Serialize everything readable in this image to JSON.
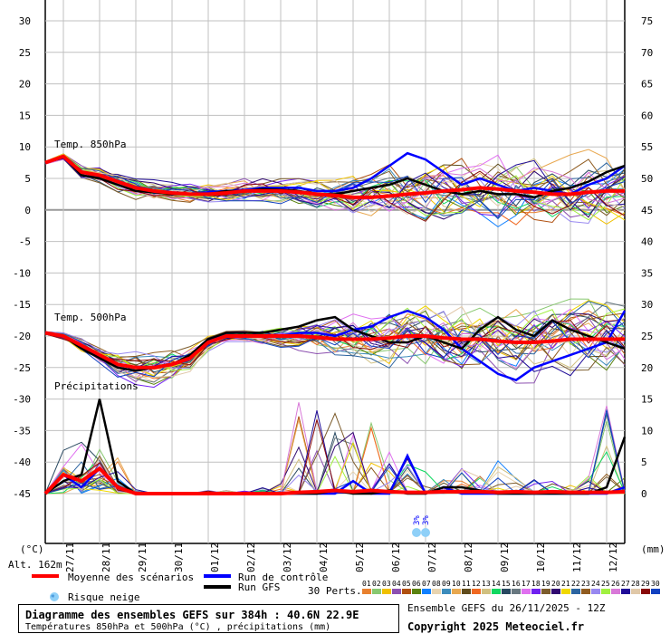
{
  "chart_data": {
    "type": "line",
    "title": "Diagramme des ensembles GEFS sur 384h : 40.6N 22.9E",
    "subtitle": "Températures 850hPa et 500hPa (°C) , précipitations (mm)",
    "run_info": "Ensemble GEFS du 26/11/2025 - 12Z",
    "copyright": "Copyright 2025 Meteociel.fr",
    "altitude": "Alt. 162m",
    "y_left_unit": "(°C)",
    "y_right_unit": "(mm)",
    "y_left_ticks": [
      "30",
      "25",
      "20",
      "15",
      "10",
      "5",
      "0",
      "-5",
      "-10",
      "-15",
      "-20",
      "-25",
      "-30",
      "-35",
      "-40",
      "-45"
    ],
    "y_left_values": [
      30,
      25,
      20,
      15,
      10,
      5,
      0,
      -5,
      -10,
      -15,
      -20,
      -25,
      -30,
      -35,
      -40,
      -45
    ],
    "y_right_ticks": [
      "75",
      "70",
      "65",
      "60",
      "55",
      "50",
      "45",
      "40",
      "35",
      "30",
      "25",
      "20",
      "15",
      "10",
      "5",
      "0"
    ],
    "ylim_left": [
      -45,
      30
    ],
    "ylim_right": [
      0,
      75
    ],
    "x_hours_range": [
      0,
      384
    ],
    "x_step_hours": 12,
    "x_tick_labels": [
      "27/11",
      "28/11",
      "29/11",
      "30/11",
      "01/12",
      "02/12",
      "03/12",
      "04/12",
      "05/12",
      "06/12",
      "07/12",
      "08/12",
      "09/12",
      "10/12",
      "11/12",
      "12/12"
    ],
    "panel_labels": {
      "t850": "Temp. 850hPa",
      "t500": "Temp. 500hPa",
      "precip": "Précipitations"
    },
    "legend": {
      "mean": "Moyenne des scénarios",
      "control": "Run de contrôle",
      "gfs": "Run GFS",
      "snow": "Risque neige",
      "perts": "30 Perts."
    },
    "colors": {
      "mean": "#ff0000",
      "control": "#0000ff",
      "gfs": "#000000"
    },
    "perturbations": [
      {
        "id": "01",
        "color": "#e8802e"
      },
      {
        "id": "02",
        "color": "#88c870"
      },
      {
        "id": "03",
        "color": "#f0c000"
      },
      {
        "id": "04",
        "color": "#8c50b0"
      },
      {
        "id": "05",
        "color": "#b05010"
      },
      {
        "id": "06",
        "color": "#5a8210"
      },
      {
        "id": "07",
        "color": "#1080ff"
      },
      {
        "id": "08",
        "color": "#e8d4b0"
      },
      {
        "id": "09",
        "color": "#3c8cbc"
      },
      {
        "id": "10",
        "color": "#e8a850"
      },
      {
        "id": "11",
        "color": "#604c1c"
      },
      {
        "id": "12",
        "color": "#f06820"
      },
      {
        "id": "13",
        "color": "#d0c080"
      },
      {
        "id": "14",
        "color": "#10d860"
      },
      {
        "id": "15",
        "color": "#284860"
      },
      {
        "id": "16",
        "color": "#687880"
      },
      {
        "id": "17",
        "color": "#e070f0"
      },
      {
        "id": "18",
        "color": "#7020f0"
      },
      {
        "id": "19",
        "color": "#7c5c2c"
      },
      {
        "id": "20",
        "color": "#300870"
      },
      {
        "id": "21",
        "color": "#f0d800"
      },
      {
        "id": "22",
        "color": "#2c64a0"
      },
      {
        "id": "23",
        "color": "#905c20"
      },
      {
        "id": "24",
        "color": "#9888f0"
      },
      {
        "id": "25",
        "color": "#a0f040"
      },
      {
        "id": "26",
        "color": "#d878d8"
      },
      {
        "id": "27",
        "color": "#200c98"
      },
      {
        "id": "28",
        "color": "#e0c8a8"
      },
      {
        "id": "29",
        "color": "#880808"
      },
      {
        "id": "30",
        "color": "#1040c0"
      }
    ],
    "series": {
      "t850_mean": [
        7.5,
        8.5,
        6,
        5.5,
        4.5,
        3.5,
        3,
        2.7,
        2.5,
        2.5,
        2.7,
        3,
        3,
        3,
        2.8,
        2.5,
        2.3,
        2,
        2,
        2.2,
        2.5,
        2.7,
        3,
        3.2,
        3.5,
        3.3,
        3,
        2.8,
        2.5,
        2.5,
        2.8,
        3,
        3
      ],
      "t850_control": [
        7.5,
        8.5,
        6,
        5.5,
        4.5,
        3.5,
        3,
        2.5,
        2.5,
        2.8,
        3,
        3.2,
        3.5,
        3.5,
        3.5,
        3,
        3,
        3.5,
        5,
        7,
        9,
        8,
        6,
        4,
        5,
        4,
        3,
        3.5,
        3,
        2.5,
        4,
        5,
        7
      ],
      "t850_gfs": [
        7.5,
        8.5,
        5.5,
        5,
        4,
        3,
        2.8,
        2.5,
        2.5,
        2.5,
        3,
        3,
        3.3,
        3.2,
        3,
        2.5,
        2.5,
        3,
        3.5,
        4,
        5,
        4,
        3,
        2.5,
        3,
        2.5,
        2.5,
        2,
        3,
        3.5,
        4.5,
        6,
        7
      ],
      "t850_spread": [
        0.3,
        0.5,
        1,
        1.2,
        1.5,
        1.5,
        1.5,
        1.5,
        1.5,
        1.5,
        1.5,
        1.7,
        2,
        2,
        2,
        2.2,
        2.5,
        3,
        3.5,
        4,
        4.5,
        4.5,
        4.5,
        4.5,
        4.5,
        5,
        5,
        5,
        5,
        5,
        5,
        5,
        5
      ],
      "t500_mean": [
        -19.5,
        -20,
        -21.5,
        -23,
        -24.5,
        -25,
        -25,
        -24.5,
        -23.5,
        -21,
        -20,
        -20,
        -20,
        -20,
        -20,
        -20.2,
        -20.5,
        -20.5,
        -20.5,
        -20.3,
        -20,
        -20,
        -20.3,
        -20.5,
        -20.5,
        -20.8,
        -21,
        -21,
        -20.8,
        -20.5,
        -20.5,
        -20.5,
        -20.5
      ],
      "t500_control": [
        -19.5,
        -20,
        -21.5,
        -23.5,
        -25,
        -25.5,
        -25,
        -24.5,
        -23,
        -20.5,
        -20,
        -20,
        -20,
        -20,
        -19.5,
        -19.5,
        -20,
        -19,
        -18.5,
        -17,
        -16,
        -17,
        -19,
        -22,
        -24,
        -26,
        -27,
        -25,
        -24,
        -23,
        -22,
        -21,
        -16
      ],
      "t500_gfs": [
        -19.5,
        -20,
        -22,
        -23.5,
        -25,
        -25.5,
        -25,
        -24.5,
        -23,
        -20.5,
        -19.5,
        -19.5,
        -19.5,
        -19,
        -18.5,
        -17.5,
        -17,
        -19,
        -20,
        -21,
        -21,
        -20,
        -21,
        -22,
        -19,
        -17,
        -19,
        -20,
        -17.5,
        -19,
        -20,
        -21,
        -22
      ],
      "t500_spread": [
        0.3,
        0.5,
        1,
        1.5,
        2,
        2.5,
        2.5,
        2.5,
        2,
        1.5,
        1,
        1,
        1.2,
        1.5,
        2,
        2.5,
        3,
        3.5,
        4,
        4.5,
        5,
        5,
        5,
        5,
        5,
        5,
        5.5,
        5.5,
        5.5,
        5.5,
        5.5,
        5.5,
        5.5
      ],
      "precip_mean": [
        0,
        3,
        2,
        4,
        1,
        0,
        0,
        0,
        0,
        0,
        0,
        0,
        0,
        0,
        0.2,
        0.3,
        0.5,
        0.3,
        0.5,
        0.3,
        0.2,
        0.2,
        0.3,
        0.3,
        0.3,
        0.2,
        0.3,
        0.2,
        0.3,
        0.2,
        0.2,
        0.2,
        0.3
      ],
      "precip_control": [
        0,
        3,
        1,
        4,
        1,
        0,
        0,
        0,
        0,
        0,
        0,
        0,
        0,
        0,
        0,
        0,
        0,
        2,
        0,
        0,
        6,
        0,
        1,
        0,
        0,
        0,
        0,
        0,
        0,
        0,
        0,
        0,
        1
      ],
      "precip_gfs": [
        0,
        2,
        3,
        15,
        2,
        0,
        0,
        0,
        0,
        0,
        0,
        0,
        0,
        0,
        0,
        0,
        0.5,
        0,
        0,
        0.5,
        0,
        0,
        1,
        1,
        0.5,
        0,
        0,
        0,
        0,
        0,
        0,
        1,
        9
      ],
      "precip_max": [
        0,
        8,
        10,
        10,
        6,
        1,
        0,
        0,
        0.5,
        0.5,
        0.5,
        0.5,
        1,
        2,
        15,
        18,
        15,
        10,
        12,
        8,
        6,
        4,
        3,
        4,
        3,
        8,
        3,
        3,
        2,
        2,
        3,
        14,
        5
      ]
    },
    "snow_risk": [
      {
        "hour": 246,
        "pct": "3%"
      },
      {
        "hour": 252,
        "pct": "3%"
      }
    ]
  }
}
